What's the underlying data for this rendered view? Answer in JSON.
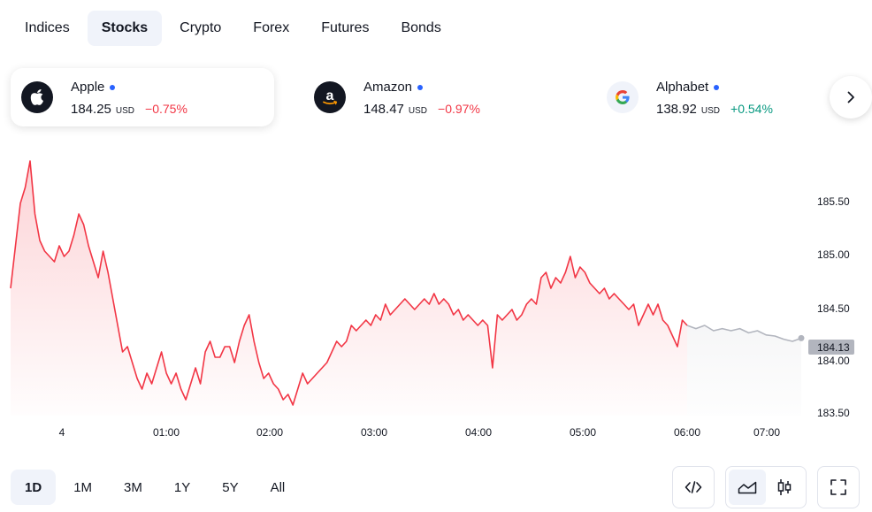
{
  "tabs": [
    {
      "label": "Indices",
      "active": false
    },
    {
      "label": "Stocks",
      "active": true
    },
    {
      "label": "Crypto",
      "active": false
    },
    {
      "label": "Forex",
      "active": false
    },
    {
      "label": "Futures",
      "active": false
    },
    {
      "label": "Bonds",
      "active": false
    }
  ],
  "tickers": [
    {
      "name": "Apple",
      "price": "184.25",
      "currency": "USD",
      "change": "−0.75%",
      "direction": "down",
      "icon": "apple-logo-icon",
      "active": true
    },
    {
      "name": "Amazon",
      "price": "148.47",
      "currency": "USD",
      "change": "−0.97%",
      "direction": "down",
      "icon": "amazon-logo-icon",
      "active": false
    },
    {
      "name": "Alphabet",
      "price": "138.92",
      "currency": "USD",
      "change": "+0.54%",
      "direction": "up",
      "icon": "google-logo-icon",
      "active": false
    }
  ],
  "next_icon": "chevron-right-icon",
  "chart_data": {
    "type": "area",
    "y_ticks": [
      "185.50",
      "185.00",
      "184.50",
      "184.00",
      "183.50"
    ],
    "x_ticks": [
      "4",
      "01:00",
      "02:00",
      "03:00",
      "04:00",
      "05:00",
      "06:00",
      "07:00"
    ],
    "ylim": [
      183.4,
      185.9
    ],
    "last_price_label": "184.13",
    "series": [
      {
        "values": [
          184.6,
          185.0,
          185.4,
          185.55,
          185.8,
          185.3,
          185.05,
          184.95,
          184.9,
          184.85,
          185.0,
          184.9,
          184.95,
          185.1,
          185.3,
          185.2,
          185.0,
          184.85,
          184.7,
          184.95,
          184.75,
          184.5,
          184.25,
          184.0,
          184.05,
          183.9,
          183.75,
          183.65,
          183.8,
          183.7,
          183.85,
          184.0,
          183.8,
          183.7,
          183.8,
          183.65,
          183.55,
          183.7,
          183.85,
          183.7,
          184.0,
          184.1,
          183.95,
          183.95,
          184.05,
          184.05,
          183.9,
          184.1,
          184.25,
          184.35,
          184.1,
          183.9,
          183.75,
          183.8,
          183.7,
          183.65,
          183.55,
          183.6,
          183.5,
          183.65,
          183.8,
          183.7,
          183.75,
          183.8,
          183.85,
          183.9,
          184.0,
          184.1,
          184.05,
          184.1,
          184.25,
          184.2,
          184.25,
          184.3,
          184.25,
          184.35,
          184.3,
          184.45,
          184.35,
          184.4,
          184.45,
          184.5,
          184.45,
          184.4,
          184.45,
          184.5,
          184.45,
          184.55,
          184.45,
          184.5,
          184.45,
          184.35,
          184.4,
          184.3,
          184.35,
          184.3,
          184.25,
          184.3,
          184.25,
          183.85,
          184.35,
          184.3,
          184.35,
          184.4,
          184.3,
          184.35,
          184.45,
          184.5,
          184.45,
          184.7,
          184.75,
          184.6,
          184.7,
          184.65,
          184.75,
          184.9,
          184.7,
          184.8,
          184.75,
          184.65,
          184.6,
          184.55,
          184.6,
          184.5,
          184.55,
          184.5,
          184.45,
          184.4,
          184.45,
          184.25,
          184.35,
          184.45,
          184.35,
          184.45,
          184.3,
          184.25,
          184.15,
          184.05,
          184.3,
          184.25
        ],
        "forecast_values": [
          184.25,
          184.22,
          184.25,
          184.2,
          184.22,
          184.2,
          184.22,
          184.18,
          184.2,
          184.16,
          184.15,
          184.12,
          184.1,
          184.13
        ],
        "color": "#f23645",
        "forecast_color": "#b2b5be"
      }
    ]
  },
  "ranges": [
    {
      "label": "1D",
      "active": true
    },
    {
      "label": "1M",
      "active": false
    },
    {
      "label": "3M",
      "active": false
    },
    {
      "label": "1Y",
      "active": false
    },
    {
      "label": "5Y",
      "active": false
    },
    {
      "label": "All",
      "active": false
    }
  ],
  "tools": {
    "embed_icon": "code-icon",
    "area_icon": "area-chart-icon",
    "candle_icon": "candlestick-icon",
    "fullscreen_icon": "fullscreen-icon"
  }
}
